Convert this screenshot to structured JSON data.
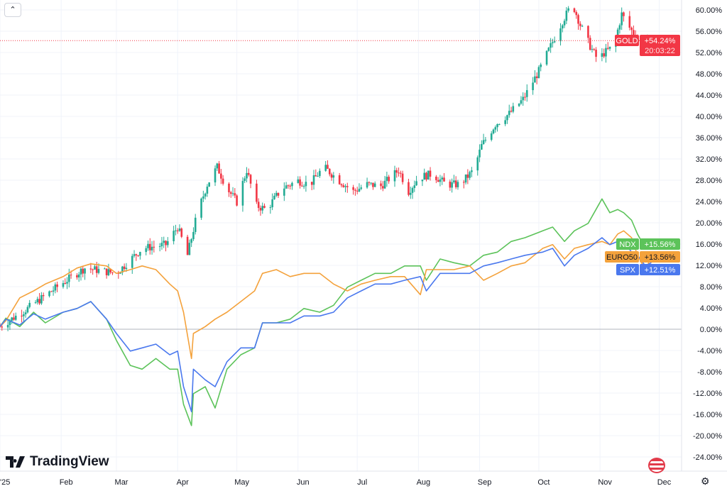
{
  "chart_data": {
    "type": "line",
    "title": "",
    "y_axis": {
      "unit": "%",
      "ticks": [
        60,
        56,
        52,
        48,
        44,
        40,
        36,
        32,
        28,
        24,
        20,
        16,
        12,
        8,
        4,
        0,
        -4,
        -8,
        -12,
        -16,
        -20,
        -24
      ],
      "range": [
        -26,
        62
      ],
      "position": "right"
    },
    "x_axis": {
      "ticks": [
        "'25",
        "Feb",
        "Mar",
        "Apr",
        "May",
        "Jun",
        "Jul",
        "Aug",
        "Sep",
        "Oct",
        "Nov",
        "Dec"
      ],
      "tick_dates": [
        "2025-01-01",
        "2025-02-01",
        "2025-03-01",
        "2025-04-01",
        "2025-05-01",
        "2025-06-01",
        "2025-07-01",
        "2025-08-01",
        "2025-09-01",
        "2025-10-01",
        "2025-11-01",
        "2025-12-01"
      ]
    },
    "grid": true,
    "baseline": 0,
    "series": [
      {
        "name": "GOLD",
        "style": "candlestick",
        "color_up": "#22ab94",
        "color_down": "#f23645",
        "label_color": "#f23645",
        "last_value": "+54.24%",
        "countdown": "20:03:22",
        "dates": [
          "2025-01-01",
          "2025-01-15",
          "2025-02-01",
          "2025-02-13",
          "2025-03-01",
          "2025-03-14",
          "2025-03-26",
          "2025-04-01",
          "2025-04-06",
          "2025-04-11",
          "2025-04-16",
          "2025-04-21",
          "2025-04-26",
          "2025-05-01",
          "2025-05-06",
          "2025-05-11",
          "2025-05-16",
          "2025-05-24",
          "2025-06-01",
          "2025-06-07",
          "2025-06-14",
          "2025-06-22",
          "2025-06-29",
          "2025-07-06",
          "2025-07-13",
          "2025-07-22",
          "2025-07-27",
          "2025-08-01",
          "2025-08-08",
          "2025-08-15",
          "2025-08-22",
          "2025-08-29",
          "2025-09-02",
          "2025-09-09",
          "2025-09-16",
          "2025-09-23",
          "2025-10-01",
          "2025-10-07",
          "2025-10-13",
          "2025-10-18",
          "2025-10-22",
          "2025-10-27",
          "2025-10-31",
          "2025-11-03",
          "2025-11-08",
          "2025-11-12",
          "2025-11-15",
          "2025-11-20",
          "2025-11-25"
        ],
        "values": [
          0.5,
          3.9,
          8.5,
          11.5,
          10.5,
          15.2,
          15.9,
          19.2,
          13.9,
          21.9,
          27.2,
          30.5,
          26.5,
          23.9,
          29.9,
          23.2,
          22.5,
          26.5,
          27.9,
          27.2,
          30.5,
          27.9,
          25.9,
          27.2,
          26.9,
          29.9,
          25.9,
          28.5,
          29.2,
          27.2,
          27.2,
          29.9,
          34.5,
          38.5,
          40.5,
          43.2,
          48.5,
          53.2,
          57.9,
          61.2,
          57.2,
          53.2,
          50.5,
          51.9,
          53.2,
          59.2,
          57.2,
          54.5,
          54.24
        ]
      },
      {
        "name": "NDX",
        "style": "line",
        "color": "#5cc35a",
        "last_value": "+15.56%",
        "values": [
          0.5,
          2.1,
          0.5,
          3.2,
          1.2,
          3.2,
          3.9,
          5.2,
          1.9,
          -2.1,
          -6.8,
          -7.5,
          -5.5,
          -7.5,
          -7.5,
          -14.1,
          -18.1,
          -12.1,
          -10.8,
          -14.8,
          -7.5,
          -4.8,
          -3.5,
          1.2,
          1.2,
          1.9,
          3.9,
          3.2,
          4.5,
          7.9,
          9.2,
          10.5,
          10.5,
          11.9,
          11.9,
          9.2,
          13.2,
          12.5,
          11.9,
          13.9,
          14.5,
          16.5,
          17.2,
          18.5,
          19.2,
          16.5,
          18.5,
          19.9,
          24.5,
          21.9,
          22.5,
          21.9,
          20.5,
          17.9,
          15.2,
          15.56
        ]
      },
      {
        "name": "EURO50",
        "style": "line",
        "color": "#f4a23c",
        "last_value": "+13.56%",
        "values": [
          0.5,
          1.6,
          5.9,
          7.2,
          8.5,
          9.9,
          11.5,
          12.3,
          11.9,
          10.5,
          11.2,
          11.9,
          11.2,
          8.5,
          7.2,
          3.2,
          -5.5,
          -0.8,
          0.5,
          1.9,
          3.2,
          5.2,
          7.2,
          10.5,
          11.2,
          9.9,
          10.5,
          10.5,
          8.5,
          7.2,
          8.5,
          9.2,
          9.9,
          9.9,
          6.5,
          11.2,
          11.2,
          11.2,
          11.9,
          9.2,
          10.5,
          11.9,
          12.5,
          15.2,
          15.9,
          13.2,
          15.2,
          15.9,
          16.5,
          15.9,
          17.9,
          18.5,
          17.2,
          13.9,
          11.2,
          13.56
        ]
      },
      {
        "name": "SPX",
        "style": "line",
        "color": "#4a78ee",
        "last_value": "+12.51%",
        "values": [
          0.5,
          1.9,
          0.8,
          2.9,
          1.9,
          3.2,
          3.9,
          5.2,
          1.9,
          -0.8,
          -4.1,
          -3.5,
          -2.8,
          -4.8,
          -4.1,
          -10.8,
          -15.5,
          -7.5,
          -9.5,
          -10.8,
          -6.1,
          -3.5,
          -3.5,
          1.2,
          1.2,
          1.2,
          2.5,
          2.5,
          3.2,
          5.9,
          7.2,
          8.5,
          8.5,
          9.2,
          9.9,
          7.2,
          10.5,
          10.5,
          10.5,
          11.9,
          12.5,
          13.2,
          13.9,
          14.5,
          15.2,
          11.9,
          13.9,
          15.2,
          17.2,
          15.9,
          16.5,
          16.5,
          14.5,
          13.9,
          11.9,
          12.51
        ]
      }
    ],
    "line_dates": [
      "2025-01-01",
      "2025-01-04",
      "2025-01-11",
      "2025-01-18",
      "2025-01-24",
      "2025-02-02",
      "2025-02-09",
      "2025-02-16",
      "2025-02-24",
      "2025-03-01",
      "2025-03-08",
      "2025-03-14",
      "2025-03-21",
      "2025-03-28",
      "2025-04-01",
      "2025-04-04",
      "2025-04-08",
      "2025-04-09",
      "2025-04-15",
      "2025-04-20",
      "2025-04-26",
      "2025-05-03",
      "2025-05-10",
      "2025-05-14",
      "2025-05-21",
      "2025-05-28",
      "2025-06-04",
      "2025-06-12",
      "2025-06-19",
      "2025-06-26",
      "2025-07-03",
      "2025-07-10",
      "2025-07-18",
      "2025-07-25",
      "2025-08-02",
      "2025-08-05",
      "2025-08-12",
      "2025-08-19",
      "2025-08-27",
      "2025-09-03",
      "2025-09-10",
      "2025-09-17",
      "2025-09-24",
      "2025-10-03",
      "2025-10-08",
      "2025-10-14",
      "2025-10-19",
      "2025-10-26",
      "2025-11-02",
      "2025-11-06",
      "2025-11-10",
      "2025-11-13",
      "2025-11-17",
      "2025-11-20",
      "2025-11-24",
      "2025-11-27"
    ]
  },
  "branding": {
    "logo_text": "TradingView"
  },
  "controls": {
    "collapse_icon": "chevron-up-icon",
    "settings_icon": "gear-icon",
    "market_flag_icon": "us-flag-icon"
  }
}
